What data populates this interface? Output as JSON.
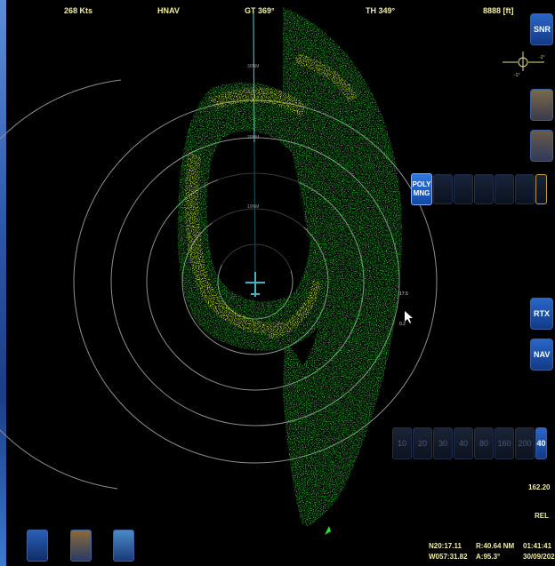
{
  "header": {
    "ground_speed": "268 Kts",
    "nav_mode": "HNAV",
    "ground_track": "GT 369°",
    "true_heading": "TH 349°",
    "altitude": "8888 [ft]"
  },
  "radar": {
    "ring_labels": [
      "10NM",
      "20NM",
      "30NM"
    ],
    "tilt_top": "17.5",
    "tilt_bottom": "0.2"
  },
  "right_panel": {
    "snr_label": "SNR",
    "pitch_marker_left": "-1°",
    "pitch_marker_right": "-1°",
    "rtx_label": "RTX",
    "nav_label": "NAV",
    "gain_value": "162.20",
    "rel_label": "REL"
  },
  "toolbar": {
    "poly_line1": "POLY",
    "poly_line2": "MNG",
    "range_buttons": [
      "10",
      "20",
      "30",
      "40",
      "80",
      "160",
      "200",
      "40"
    ],
    "active_range": "40"
  },
  "status": {
    "latitude": "N20:17.11",
    "longitude": "W057:31.82",
    "cursor_range": "R:40.64 NM",
    "cursor_azimuth": "A:95.3°",
    "time": "01:41:41",
    "date": "30/09/202"
  },
  "colors": {
    "weather_light": "#22e82a",
    "weather_heavy": "#f4f41e",
    "ring": "#9a9a9a",
    "text": "#f2ee9a",
    "button": "#2a66c8"
  },
  "icons": {
    "bottom_left": [
      "satellite-off-icon",
      "map-layers-icon",
      "globe-icon"
    ]
  }
}
